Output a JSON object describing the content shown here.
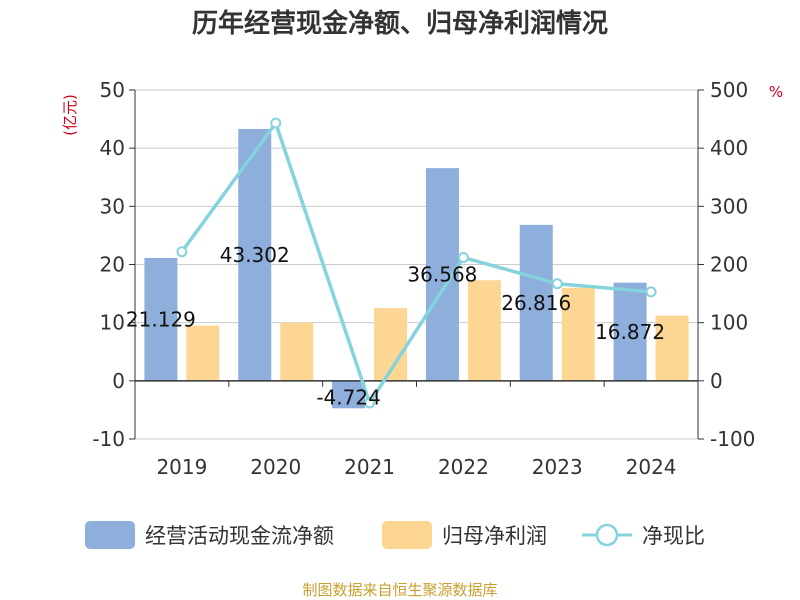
{
  "chart_data": {
    "type": "bar",
    "title": "历年经营现金净额、归母净利润情况",
    "categories": [
      "2019",
      "2020",
      "2021",
      "2022",
      "2023",
      "2024"
    ],
    "y_left": {
      "unit": "(亿元)",
      "ylim": [
        -10,
        50
      ],
      "ticks": [
        "-10",
        "0",
        "10",
        "20",
        "30",
        "40",
        "50"
      ]
    },
    "y_right": {
      "unit": "%",
      "ylim": [
        -100,
        500
      ],
      "ticks": [
        "-100",
        "0",
        "100",
        "200",
        "300",
        "400",
        "500"
      ]
    },
    "series": [
      {
        "name": "经营活动现金流净额",
        "type": "bar",
        "axis": "left",
        "color": "#8eaedb",
        "values": [
          21.129,
          43.302,
          -4.724,
          36.568,
          26.816,
          16.872
        ],
        "labels": [
          "21.129",
          "43.302",
          "-4.724",
          "36.568",
          "26.816",
          "16.872"
        ]
      },
      {
        "name": "归母净利润",
        "type": "bar",
        "axis": "left",
        "color": "#fdd694",
        "values": [
          9.5,
          10.0,
          12.5,
          17.3,
          16.0,
          11.2
        ]
      },
      {
        "name": "净现比",
        "type": "line",
        "axis": "right",
        "color": "#85d3dc",
        "values": [
          222,
          443,
          -38,
          212,
          167,
          153
        ]
      }
    ],
    "grid": true,
    "legend": "bottom"
  },
  "source": "制图数据来自恒生聚源数据库"
}
